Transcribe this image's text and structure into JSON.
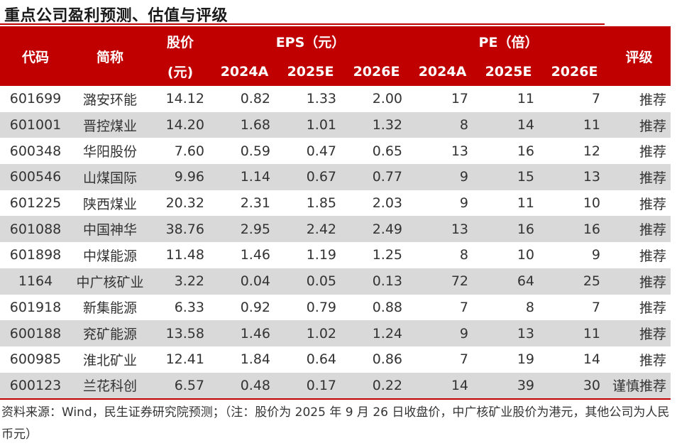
{
  "title": "重点公司盈利预测、估值与评级",
  "header": {
    "code": "代码",
    "name": "简称",
    "price_line1": "股价",
    "price_line2": "(元)",
    "eps": "EPS（元）",
    "pe": "PE（倍）",
    "rating": "评级",
    "years": [
      "2024A",
      "2025E",
      "2026E"
    ]
  },
  "rows": [
    {
      "code": "601699",
      "name": "潞安环能",
      "price": "14.12",
      "eps": [
        "0.82",
        "1.33",
        "2.00"
      ],
      "pe": [
        "17",
        "11",
        "7"
      ],
      "rating": "推荐"
    },
    {
      "code": "601001",
      "name": "晋控煤业",
      "price": "14.20",
      "eps": [
        "1.68",
        "1.01",
        "1.32"
      ],
      "pe": [
        "8",
        "14",
        "11"
      ],
      "rating": "推荐"
    },
    {
      "code": "600348",
      "name": "华阳股份",
      "price": "7.60",
      "eps": [
        "0.59",
        "0.47",
        "0.65"
      ],
      "pe": [
        "13",
        "16",
        "12"
      ],
      "rating": "推荐"
    },
    {
      "code": "600546",
      "name": "山煤国际",
      "price": "9.96",
      "eps": [
        "1.14",
        "0.67",
        "0.77"
      ],
      "pe": [
        "9",
        "15",
        "13"
      ],
      "rating": "推荐"
    },
    {
      "code": "601225",
      "name": "陕西煤业",
      "price": "20.32",
      "eps": [
        "2.31",
        "1.85",
        "2.03"
      ],
      "pe": [
        "9",
        "11",
        "10"
      ],
      "rating": "推荐"
    },
    {
      "code": "601088",
      "name": "中国神华",
      "price": "38.76",
      "eps": [
        "2.95",
        "2.42",
        "2.49"
      ],
      "pe": [
        "13",
        "16",
        "16"
      ],
      "rating": "推荐"
    },
    {
      "code": "601898",
      "name": "中煤能源",
      "price": "11.48",
      "eps": [
        "1.46",
        "1.19",
        "1.25"
      ],
      "pe": [
        "8",
        "10",
        "9"
      ],
      "rating": "推荐"
    },
    {
      "code": "1164",
      "name": "中广核矿业",
      "price": "3.22",
      "eps": [
        "0.04",
        "0.05",
        "0.13"
      ],
      "pe": [
        "72",
        "64",
        "25"
      ],
      "rating": "推荐"
    },
    {
      "code": "601918",
      "name": "新集能源",
      "price": "6.33",
      "eps": [
        "0.92",
        "0.79",
        "0.88"
      ],
      "pe": [
        "7",
        "8",
        "7"
      ],
      "rating": "推荐"
    },
    {
      "code": "600188",
      "name": "兖矿能源",
      "price": "13.58",
      "eps": [
        "1.46",
        "1.02",
        "1.24"
      ],
      "pe": [
        "9",
        "13",
        "11"
      ],
      "rating": "推荐"
    },
    {
      "code": "600985",
      "name": "淮北矿业",
      "price": "12.41",
      "eps": [
        "1.84",
        "0.64",
        "0.86"
      ],
      "pe": [
        "7",
        "19",
        "14"
      ],
      "rating": "推荐"
    },
    {
      "code": "600123",
      "name": "兰花科创",
      "price": "6.57",
      "eps": [
        "0.48",
        "0.17",
        "0.22"
      ],
      "pe": [
        "14",
        "39",
        "30"
      ],
      "rating": "谨慎推荐"
    }
  ],
  "source_note": "资料来源：Wind，民生证券研究院预测；（注：股价为 2025 年 9 月 26 日收盘价，中广核矿业股价为港元，其他公司为人民币元）"
}
